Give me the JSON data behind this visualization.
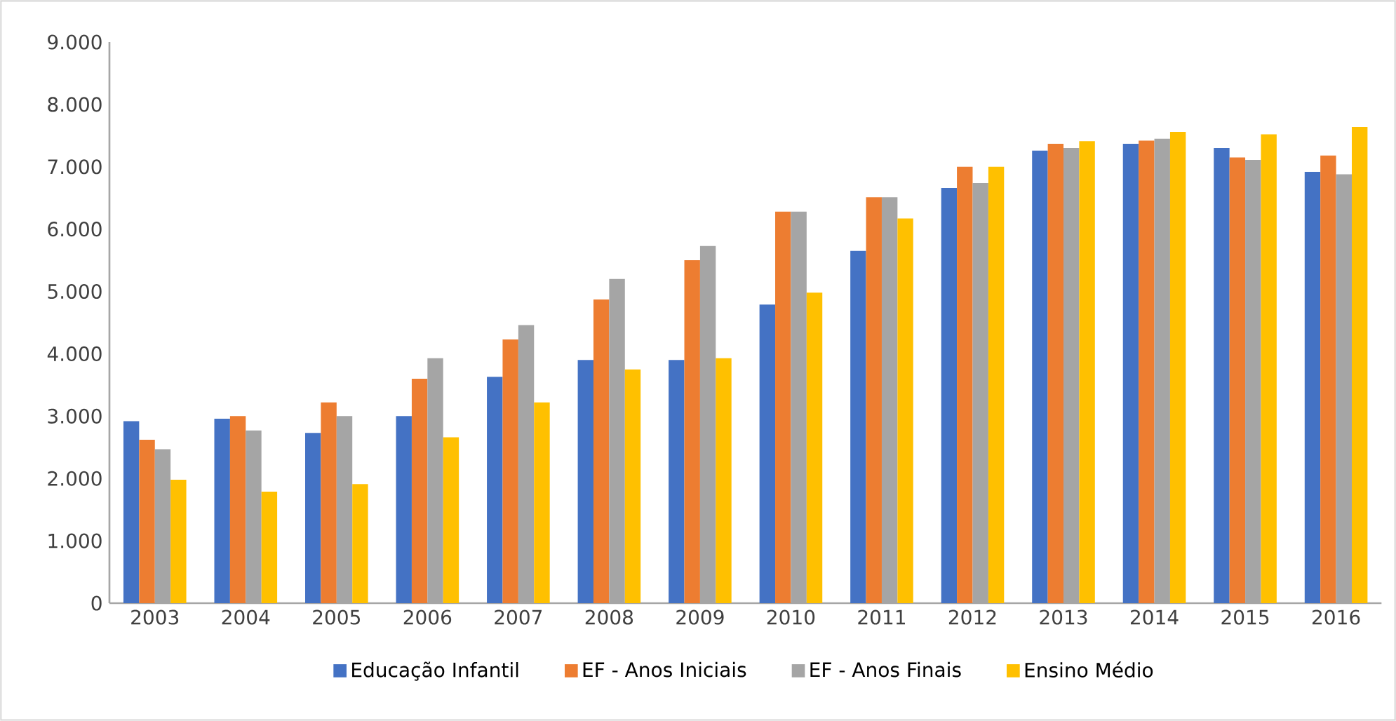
{
  "chart_data": {
    "type": "bar",
    "categories": [
      "2003",
      "2004",
      "2005",
      "2006",
      "2007",
      "2008",
      "2009",
      "2010",
      "2011",
      "2012",
      "2013",
      "2014",
      "2015",
      "2016"
    ],
    "series": [
      {
        "name": "Educação Infantil",
        "color": "#4472c4",
        "values": [
          2920,
          2960,
          2730,
          3000,
          3630,
          3900,
          3900,
          4790,
          5650,
          6660,
          7260,
          7370,
          7300,
          6920
        ]
      },
      {
        "name": "EF - Anos Iniciais",
        "color": "#ed7d31",
        "values": [
          2620,
          3000,
          3220,
          3600,
          4230,
          4870,
          5500,
          6280,
          6510,
          7000,
          7370,
          7420,
          7150,
          7180
        ]
      },
      {
        "name": "EF - Anos Finais",
        "color": "#a5a5a5",
        "values": [
          2470,
          2770,
          3000,
          3930,
          4460,
          5200,
          5730,
          6280,
          6510,
          6740,
          7300,
          7450,
          7110,
          6880
        ]
      },
      {
        "name": "Ensino Médio",
        "color": "#ffc000",
        "values": [
          1980,
          1790,
          1910,
          2660,
          3220,
          3750,
          3930,
          4980,
          6170,
          7000,
          7410,
          7560,
          7520,
          7640
        ]
      }
    ],
    "ylim": [
      0,
      9000
    ],
    "yticks": [
      0,
      {
        "value": 1000,
        "label": "1.000"
      },
      {
        "value": 2000,
        "label": "2.000"
      },
      {
        "value": 3000,
        "label": "3.000"
      },
      {
        "value": 4000,
        "label": "4.000"
      },
      {
        "value": 5000,
        "label": "5.000"
      },
      {
        "value": 6000,
        "label": "6.000"
      },
      {
        "value": 7000,
        "label": "7.000"
      },
      {
        "value": 8000,
        "label": "8.000"
      },
      {
        "value": 9000,
        "label": "9.000"
      }
    ],
    "grid": false,
    "legend": "bottom"
  }
}
